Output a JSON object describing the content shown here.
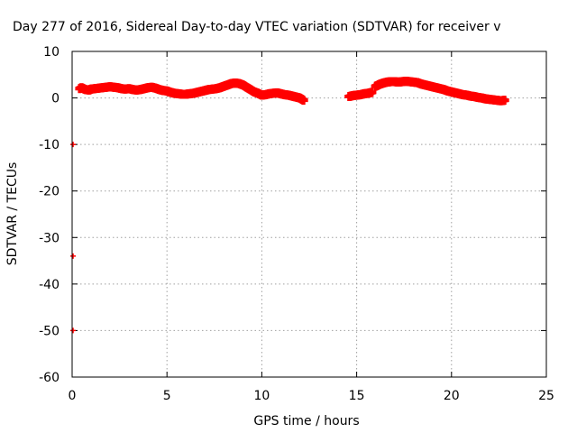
{
  "chart_data": {
    "type": "scatter",
    "title": "Day 277 of 2016, Sidereal Day-to-day VTEC variation (SDTVAR) for receiver v",
    "xlabel": "GPS time / hours",
    "ylabel": "SDTVAR / TECUs",
    "xlim": [
      0,
      25
    ],
    "ylim": [
      -60,
      10
    ],
    "xticks": [
      0,
      5,
      10,
      15,
      20,
      25
    ],
    "yticks": [
      10,
      0,
      -10,
      -20,
      -30,
      -40,
      -50,
      -60
    ],
    "grid": true,
    "marker": "plus",
    "color": "#ff0000",
    "series": [
      {
        "x": [
          0.4,
          0.5,
          0.7,
          0.9,
          1.0,
          1.2,
          1.4,
          1.6,
          1.8,
          2.0,
          2.2,
          2.4,
          2.6,
          2.8,
          3.0,
          3.2,
          3.4,
          3.6,
          3.8,
          4.0,
          4.2,
          4.4,
          4.6,
          4.8,
          5.0,
          5.2,
          5.4,
          5.6,
          5.8,
          6.0,
          6.2,
          6.4,
          6.6,
          6.8,
          7.0,
          7.2,
          7.4,
          7.6,
          7.8,
          8.0,
          8.2,
          8.4,
          8.6,
          8.8,
          9.0,
          9.2,
          9.4,
          9.6,
          9.8,
          10.0,
          10.2,
          10.4,
          10.6,
          10.8,
          11.0,
          11.2,
          11.4,
          11.6,
          11.8,
          12.0,
          12.2
        ],
        "y": [
          2.0,
          2.2,
          1.8,
          1.7,
          1.9,
          2.0,
          2.1,
          2.2,
          2.3,
          2.4,
          2.3,
          2.2,
          2.0,
          1.9,
          2.0,
          1.8,
          1.7,
          1.8,
          2.0,
          2.2,
          2.3,
          2.1,
          1.8,
          1.6,
          1.5,
          1.2,
          1.0,
          0.9,
          0.8,
          0.8,
          0.9,
          1.0,
          1.2,
          1.4,
          1.6,
          1.8,
          1.9,
          2.0,
          2.2,
          2.5,
          2.8,
          3.1,
          3.2,
          3.1,
          2.8,
          2.3,
          1.8,
          1.3,
          1.0,
          0.6,
          0.7,
          0.9,
          1.0,
          1.1,
          0.9,
          0.7,
          0.6,
          0.4,
          0.2,
          0.0,
          -0.5
        ]
      },
      {
        "x": [
          14.6,
          14.8,
          15.0,
          15.2,
          15.4,
          15.6,
          15.8
        ],
        "y": [
          0.3,
          0.5,
          0.6,
          0.7,
          0.9,
          1.0,
          1.2
        ]
      },
      {
        "x": [
          16.0,
          16.2,
          16.4,
          16.6,
          16.8,
          17.0,
          17.2,
          17.4,
          17.6,
          17.8,
          18.0,
          18.2,
          18.4,
          18.6,
          18.8,
          19.0,
          19.2,
          19.4,
          19.6,
          19.8,
          20.0,
          20.2,
          20.4,
          20.6,
          20.8,
          21.0,
          21.2,
          21.4,
          21.6,
          21.8,
          22.0,
          22.2,
          22.4,
          22.6,
          22.8
        ],
        "y": [
          2.5,
          2.9,
          3.2,
          3.4,
          3.5,
          3.5,
          3.4,
          3.5,
          3.6,
          3.5,
          3.4,
          3.3,
          3.0,
          2.8,
          2.6,
          2.4,
          2.2,
          2.0,
          1.8,
          1.5,
          1.3,
          1.1,
          0.9,
          0.7,
          0.6,
          0.4,
          0.3,
          0.1,
          0.0,
          -0.2,
          -0.3,
          -0.4,
          -0.5,
          -0.6,
          -0.5
        ]
      },
      {
        "x": [
          0.05,
          0.05,
          0.05
        ],
        "y": [
          -10.0,
          -34.0,
          -50.0
        ]
      }
    ]
  }
}
